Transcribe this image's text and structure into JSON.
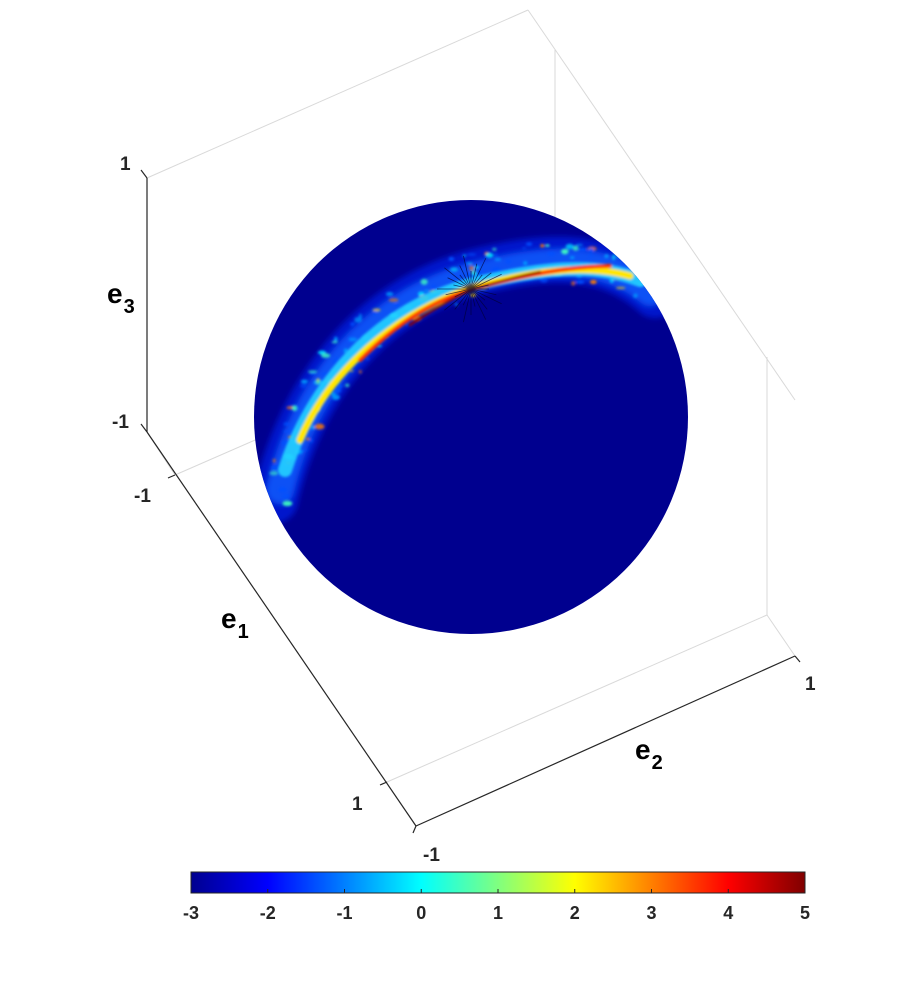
{
  "chart_data": {
    "type": "heatmap",
    "subtype": "3d-sphere-surface",
    "colormap": "jet",
    "grid": false,
    "axes": {
      "x": {
        "label_main": "e",
        "label_sub": "1",
        "range": [
          -1,
          1
        ],
        "ticks": [
          "-1",
          "1"
        ]
      },
      "y": {
        "label_main": "e",
        "label_sub": "2",
        "range": [
          -1,
          1
        ],
        "ticks": [
          "-1",
          "1"
        ]
      },
      "z": {
        "label_main": "e",
        "label_sub": "3",
        "range": [
          -1,
          1
        ],
        "ticks": [
          "-1",
          "1"
        ]
      }
    },
    "colorbar": {
      "orientation": "horizontal",
      "placement": "bottom",
      "range": [
        -3,
        5
      ],
      "ticks": [
        "-3",
        "-2",
        "-1",
        "0",
        "1",
        "2",
        "3",
        "4",
        "5"
      ]
    },
    "surface": {
      "background_value": -3,
      "band_description": "narrow arc of high values along an upper great circle with speckled fringes",
      "peak_value": 5
    }
  }
}
